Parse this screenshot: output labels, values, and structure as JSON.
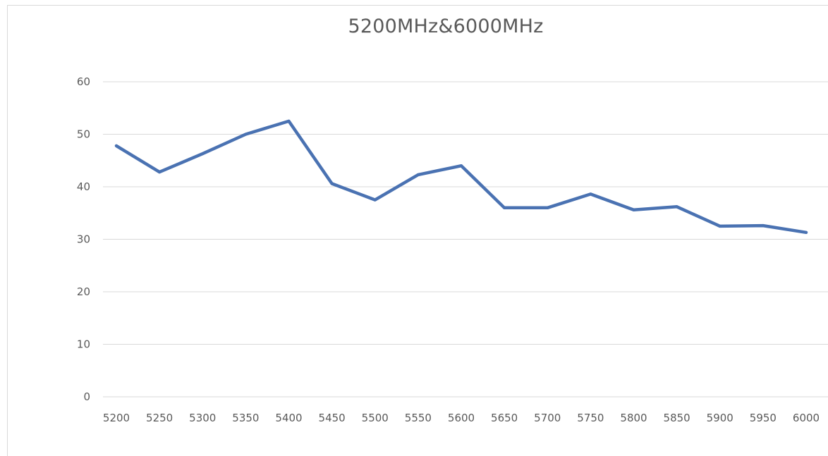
{
  "chart_data": {
    "type": "line",
    "title": "5200MHz&6000MHz",
    "xlabel": "",
    "ylabel": "",
    "categories": [
      "5200",
      "5250",
      "5300",
      "5350",
      "5400",
      "5450",
      "5500",
      "5550",
      "5600",
      "5650",
      "5700",
      "5750",
      "5800",
      "5850",
      "5900",
      "5950",
      "6000"
    ],
    "series": [
      {
        "values": [
          47.8,
          42.8,
          46.3,
          50.0,
          52.5,
          40.6,
          37.5,
          42.3,
          44.0,
          36.0,
          36.0,
          38.6,
          35.6,
          36.2,
          32.5,
          32.6,
          31.3
        ],
        "color": "#4a72b2"
      }
    ],
    "ylim": [
      0,
      60
    ],
    "yticks": [
      0,
      10,
      20,
      30,
      40,
      50,
      60
    ],
    "grid": true,
    "legend": "none"
  }
}
